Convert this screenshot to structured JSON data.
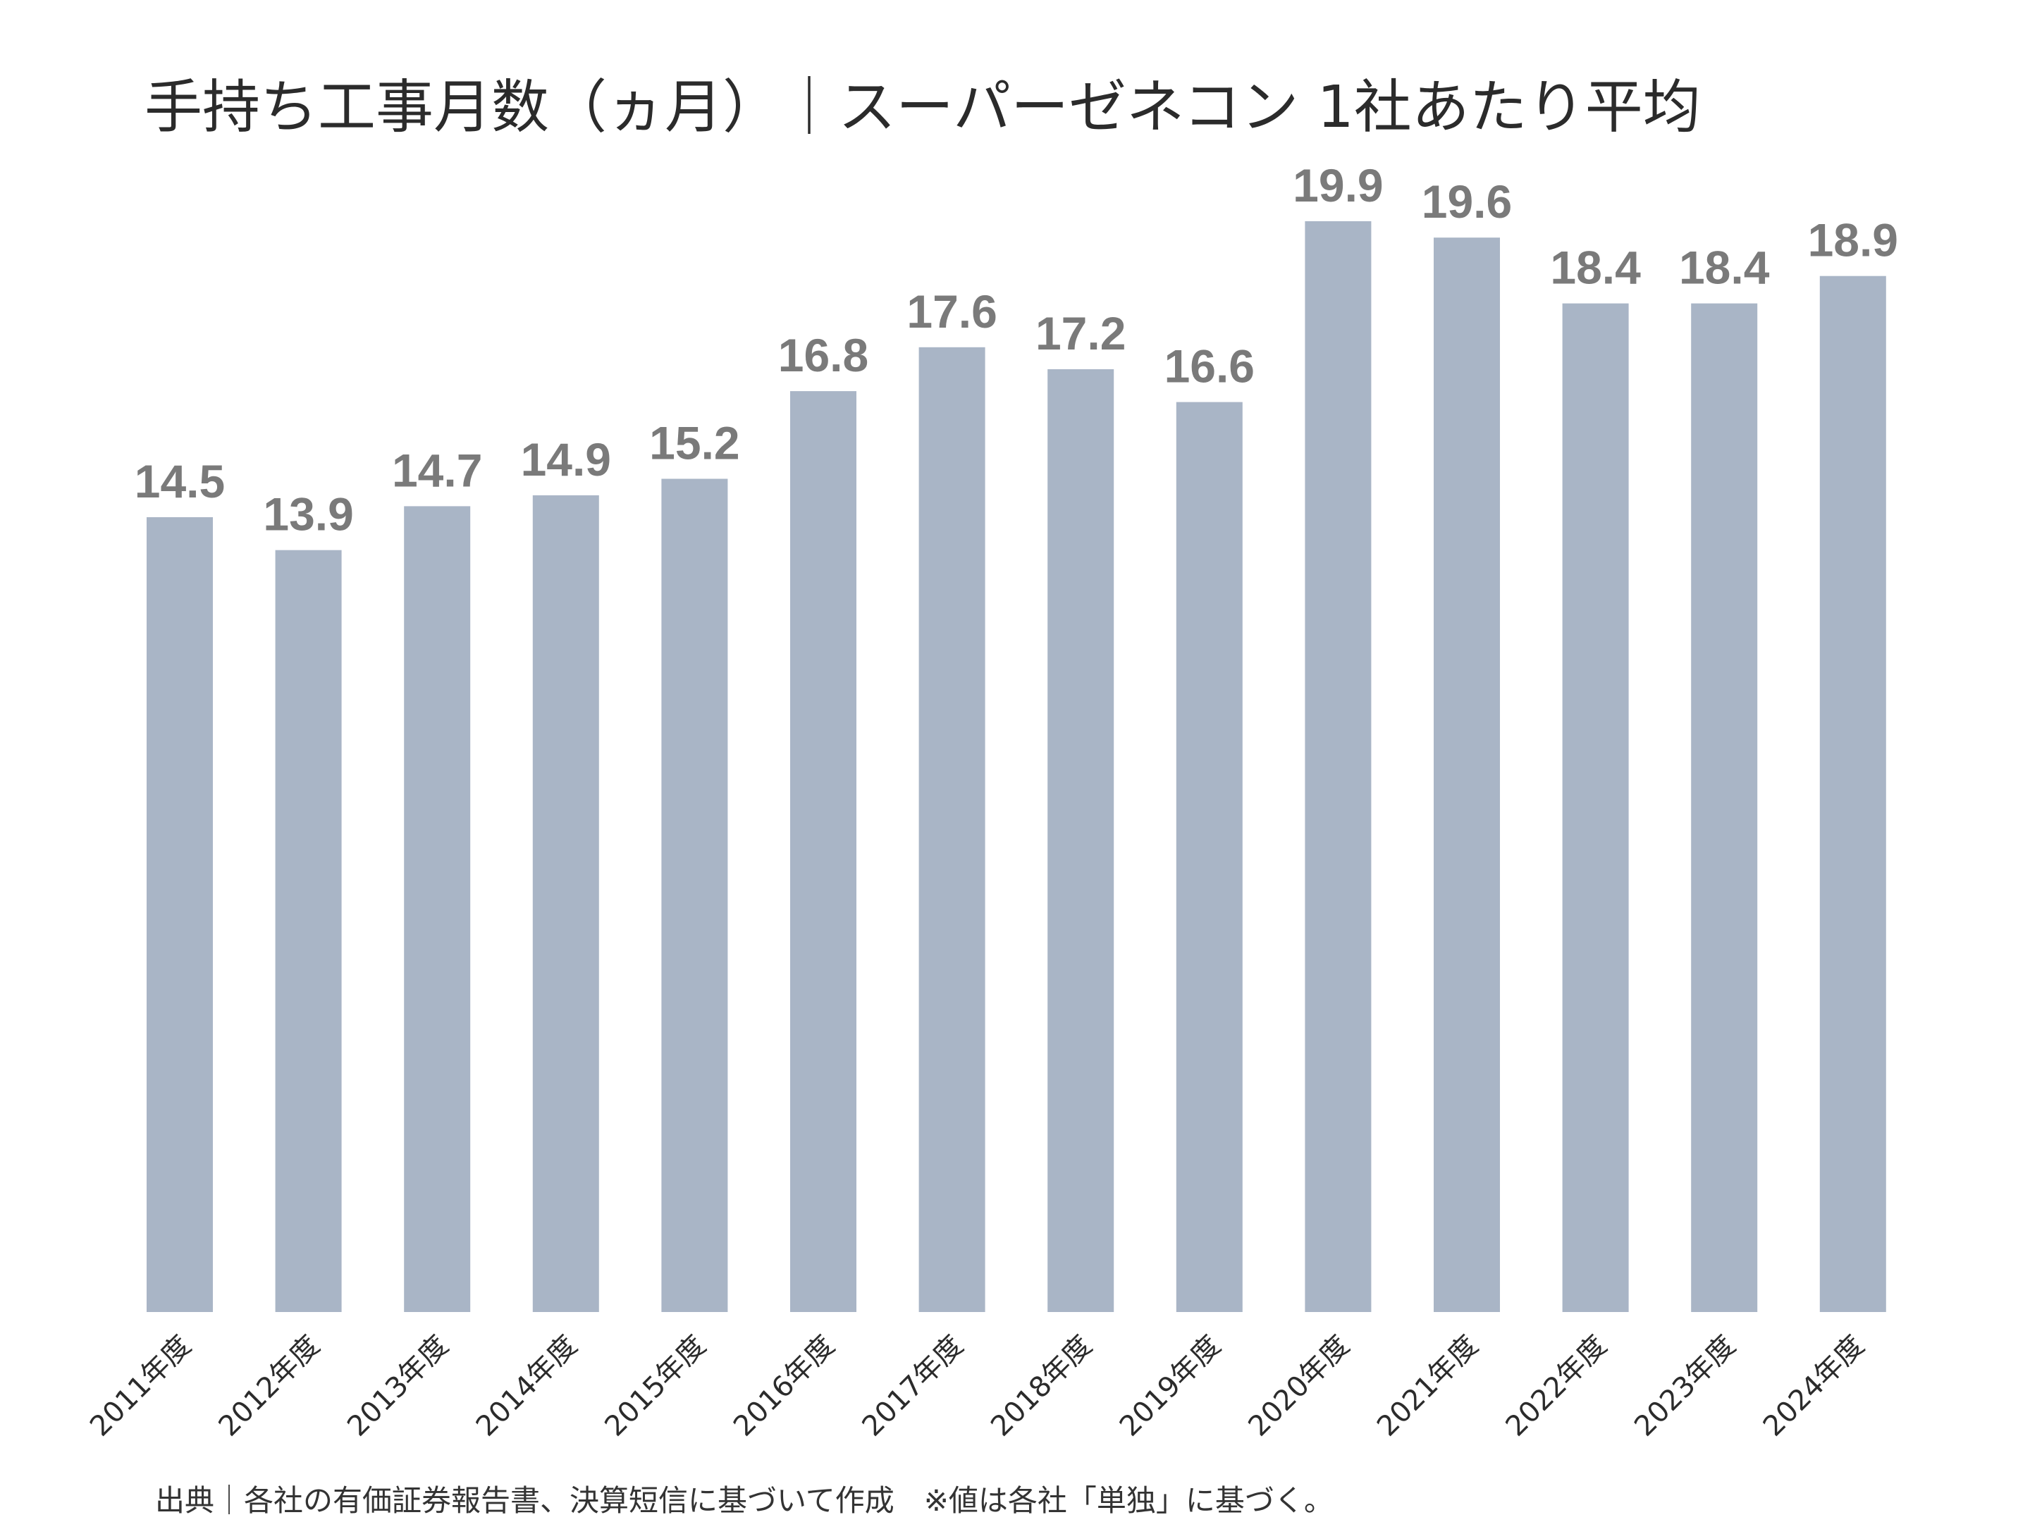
{
  "colors": {
    "bar": "#a9b5c6",
    "value_label": "#7a7a7a",
    "text": "#2b2b2b"
  },
  "chart_data": {
    "type": "bar",
    "title": "手持ち工事月数（ヵ月）｜スーパーゼネコン 1社あたり平均",
    "xlabel": "",
    "ylabel": "",
    "ylim": [
      0,
      21.3
    ],
    "grid": false,
    "legend": "none",
    "categories": [
      "2011年度",
      "2012年度",
      "2013年度",
      "2014年度",
      "2015年度",
      "2016年度",
      "2017年度",
      "2018年度",
      "2019年度",
      "2020年度",
      "2021年度",
      "2022年度",
      "2023年度",
      "2024年度"
    ],
    "values": [
      14.5,
      13.9,
      14.7,
      14.9,
      15.2,
      16.8,
      17.6,
      17.2,
      16.6,
      19.9,
      19.6,
      18.4,
      18.4,
      18.9
    ],
    "value_labels": [
      "14.5",
      "13.9",
      "14.7",
      "14.9",
      "15.2",
      "16.8",
      "17.6",
      "17.2",
      "16.6",
      "19.9",
      "19.6",
      "18.4",
      "18.4",
      "18.9"
    ]
  },
  "footnote": "出典｜各社の有価証券報告書、決算短信に基づいて作成　※値は各社「単独」に基づく。"
}
